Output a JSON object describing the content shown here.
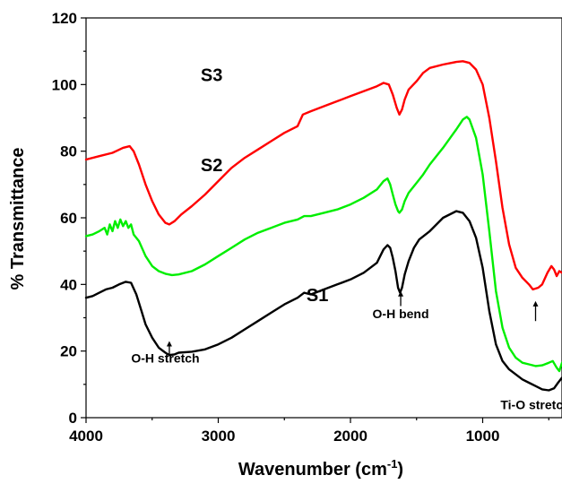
{
  "chart_data": {
    "type": "line",
    "xlabel_main": "Wavenumber (cm",
    "xlabel_sup": "-1",
    "xlabel_tail": ")",
    "ylabel": "% Transmittance",
    "xlim": [
      4000,
      400
    ],
    "ylim": [
      0,
      120
    ],
    "x_reversed": true,
    "x_ticks": [
      4000,
      3000,
      2000,
      1000
    ],
    "y_ticks": [
      0,
      20,
      40,
      60,
      80,
      100,
      120
    ],
    "grid": false,
    "series": [
      {
        "name": "S3",
        "color": "#ff0000",
        "points": [
          [
            4000,
            77.5
          ],
          [
            3900,
            78.5
          ],
          [
            3800,
            79.5
          ],
          [
            3720,
            81
          ],
          [
            3670,
            81.5
          ],
          [
            3640,
            80
          ],
          [
            3600,
            76
          ],
          [
            3550,
            70
          ],
          [
            3500,
            65
          ],
          [
            3450,
            61
          ],
          [
            3400,
            58.5
          ],
          [
            3370,
            58
          ],
          [
            3330,
            59
          ],
          [
            3280,
            61
          ],
          [
            3200,
            63.5
          ],
          [
            3100,
            67
          ],
          [
            3000,
            71
          ],
          [
            2900,
            75
          ],
          [
            2800,
            78
          ],
          [
            2700,
            80.5
          ],
          [
            2600,
            83
          ],
          [
            2500,
            85.5
          ],
          [
            2400,
            87.5
          ],
          [
            2360,
            91
          ],
          [
            2300,
            92
          ],
          [
            2200,
            93.5
          ],
          [
            2100,
            95
          ],
          [
            2000,
            96.5
          ],
          [
            1900,
            98
          ],
          [
            1800,
            99.5
          ],
          [
            1750,
            100.5
          ],
          [
            1710,
            100
          ],
          [
            1680,
            97
          ],
          [
            1650,
            93
          ],
          [
            1630,
            91
          ],
          [
            1610,
            92.5
          ],
          [
            1590,
            95.5
          ],
          [
            1560,
            98.5
          ],
          [
            1500,
            101
          ],
          [
            1450,
            103.5
          ],
          [
            1400,
            105
          ],
          [
            1300,
            106
          ],
          [
            1200,
            106.8
          ],
          [
            1150,
            107
          ],
          [
            1100,
            106.5
          ],
          [
            1050,
            104.5
          ],
          [
            1000,
            100
          ],
          [
            950,
            90
          ],
          [
            900,
            77
          ],
          [
            850,
            63
          ],
          [
            800,
            52
          ],
          [
            750,
            45
          ],
          [
            700,
            42
          ],
          [
            650,
            40
          ],
          [
            620,
            38.5
          ],
          [
            580,
            39
          ],
          [
            550,
            40
          ],
          [
            510,
            43.5
          ],
          [
            480,
            45.5
          ],
          [
            460,
            44.5
          ],
          [
            440,
            42.5
          ],
          [
            420,
            44
          ],
          [
            400,
            43.5
          ]
        ]
      },
      {
        "name": "S2",
        "color": "#00ee00",
        "points": [
          [
            4000,
            54.5
          ],
          [
            3950,
            55
          ],
          [
            3900,
            56
          ],
          [
            3860,
            57
          ],
          [
            3840,
            55
          ],
          [
            3820,
            58
          ],
          [
            3800,
            56
          ],
          [
            3780,
            59
          ],
          [
            3760,
            57
          ],
          [
            3740,
            59.5
          ],
          [
            3720,
            57.5
          ],
          [
            3700,
            59
          ],
          [
            3680,
            57
          ],
          [
            3660,
            58
          ],
          [
            3640,
            55
          ],
          [
            3600,
            53
          ],
          [
            3550,
            48.5
          ],
          [
            3500,
            45.5
          ],
          [
            3450,
            44
          ],
          [
            3400,
            43.2
          ],
          [
            3350,
            42.8
          ],
          [
            3300,
            43
          ],
          [
            3200,
            44
          ],
          [
            3100,
            46
          ],
          [
            3000,
            48.5
          ],
          [
            2900,
            51
          ],
          [
            2800,
            53.5
          ],
          [
            2700,
            55.5
          ],
          [
            2600,
            57
          ],
          [
            2500,
            58.5
          ],
          [
            2400,
            59.5
          ],
          [
            2350,
            60.5
          ],
          [
            2300,
            60.5
          ],
          [
            2200,
            61.5
          ],
          [
            2100,
            62.5
          ],
          [
            2000,
            64
          ],
          [
            1900,
            66
          ],
          [
            1800,
            68.5
          ],
          [
            1750,
            71
          ],
          [
            1720,
            71.8
          ],
          [
            1700,
            70
          ],
          [
            1680,
            67
          ],
          [
            1660,
            64
          ],
          [
            1640,
            62
          ],
          [
            1630,
            61.5
          ],
          [
            1610,
            62.5
          ],
          [
            1590,
            65
          ],
          [
            1560,
            67.5
          ],
          [
            1500,
            70.5
          ],
          [
            1450,
            73
          ],
          [
            1400,
            76
          ],
          [
            1300,
            81
          ],
          [
            1200,
            86.5
          ],
          [
            1150,
            89.5
          ],
          [
            1120,
            90.3
          ],
          [
            1100,
            89.5
          ],
          [
            1050,
            84
          ],
          [
            1000,
            73
          ],
          [
            950,
            56
          ],
          [
            900,
            38
          ],
          [
            850,
            27
          ],
          [
            800,
            21
          ],
          [
            750,
            18
          ],
          [
            700,
            16.5
          ],
          [
            650,
            16
          ],
          [
            600,
            15.5
          ],
          [
            550,
            15.7
          ],
          [
            500,
            16.5
          ],
          [
            470,
            17
          ],
          [
            440,
            15
          ],
          [
            420,
            14
          ],
          [
            400,
            16.5
          ]
        ]
      },
      {
        "name": "S1",
        "color": "#000000",
        "points": [
          [
            4000,
            36
          ],
          [
            3950,
            36.5
          ],
          [
            3900,
            37.5
          ],
          [
            3850,
            38.5
          ],
          [
            3800,
            39
          ],
          [
            3750,
            40
          ],
          [
            3700,
            40.8
          ],
          [
            3660,
            40.5
          ],
          [
            3620,
            37
          ],
          [
            3580,
            32
          ],
          [
            3550,
            28
          ],
          [
            3500,
            24
          ],
          [
            3450,
            21
          ],
          [
            3400,
            19.5
          ],
          [
            3370,
            18.8
          ],
          [
            3330,
            19
          ],
          [
            3300,
            19.5
          ],
          [
            3200,
            19.8
          ],
          [
            3100,
            20.5
          ],
          [
            3000,
            22
          ],
          [
            2900,
            24
          ],
          [
            2800,
            26.5
          ],
          [
            2700,
            29
          ],
          [
            2600,
            31.5
          ],
          [
            2500,
            34
          ],
          [
            2400,
            36
          ],
          [
            2350,
            37.5
          ],
          [
            2300,
            37
          ],
          [
            2200,
            38.5
          ],
          [
            2100,
            40
          ],
          [
            2000,
            41.5
          ],
          [
            1900,
            43.5
          ],
          [
            1800,
            46.5
          ],
          [
            1750,
            50.5
          ],
          [
            1720,
            51.8
          ],
          [
            1700,
            51
          ],
          [
            1680,
            48
          ],
          [
            1660,
            44
          ],
          [
            1640,
            39
          ],
          [
            1625,
            37.5
          ],
          [
            1610,
            39
          ],
          [
            1590,
            43
          ],
          [
            1560,
            47
          ],
          [
            1520,
            51
          ],
          [
            1480,
            53.5
          ],
          [
            1400,
            56
          ],
          [
            1300,
            60
          ],
          [
            1200,
            62
          ],
          [
            1150,
            61.5
          ],
          [
            1100,
            59
          ],
          [
            1050,
            54
          ],
          [
            1000,
            45
          ],
          [
            950,
            32
          ],
          [
            900,
            22
          ],
          [
            850,
            17
          ],
          [
            800,
            14.5
          ],
          [
            750,
            13
          ],
          [
            700,
            11.5
          ],
          [
            650,
            10.5
          ],
          [
            600,
            9.5
          ],
          [
            550,
            8.5
          ],
          [
            500,
            8.2
          ],
          [
            460,
            8.8
          ],
          [
            430,
            10.5
          ],
          [
            400,
            12
          ]
        ]
      }
    ],
    "series_labels": [
      {
        "text": "S3",
        "x": 3050,
        "y": 101
      },
      {
        "text": "S2",
        "x": 3050,
        "y": 74
      },
      {
        "text": "S1",
        "x": 2250,
        "y": 35
      }
    ],
    "annotations": [
      {
        "text": "O-H stretch",
        "arrow_x": 3370,
        "arrow_y_top": 23,
        "arrow_y_bottom": 18.5,
        "text_x": 3400,
        "text_y": 16.5
      },
      {
        "text": "O-H bend",
        "arrow_x": 1620,
        "arrow_y_top": 33.5,
        "arrow_y_bottom": 38,
        "text_x": 1620,
        "text_y": 29.8
      },
      {
        "text": "Ti-O stretch",
        "arrow_x": 600,
        "arrow_y_top": 35,
        "arrow_y_bottom": 29,
        "text_x": 600,
        "text_y": 2.5
      }
    ]
  }
}
